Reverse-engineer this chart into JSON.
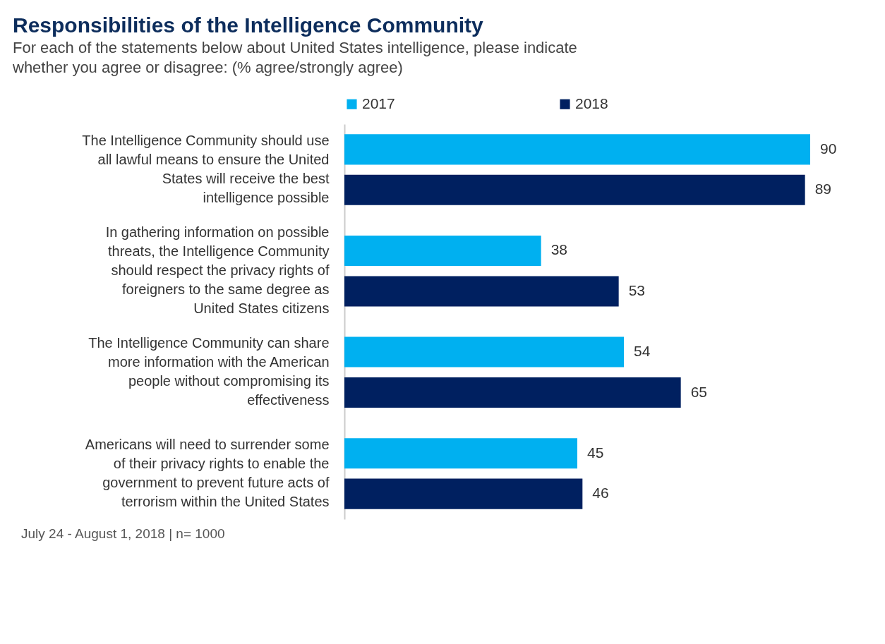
{
  "chart_data": {
    "type": "bar",
    "orientation": "horizontal",
    "title": "Responsibilities of the Intelligence Community",
    "subtitle": "For each of the statements below about United States intelligence, please indicate whether you agree or disagree: (% agree/strongly agree)",
    "categories": [
      "The Intelligence Community should use all lawful means to ensure the United States will receive the best intelligence possible",
      "In gathering information on possible threats, the Intelligence Community should respect the privacy rights of foreigners to the same degree as United States citizens",
      "The Intelligence Community can share more information with the American people without compromising its effectiveness",
      "Americans will need to surrender some of their privacy rights to enable the government to prevent future acts of terrorism within the United States"
    ],
    "series": [
      {
        "name": "2017",
        "color": "#00b0f0",
        "values": [
          90,
          38,
          54,
          45
        ]
      },
      {
        "name": "2018",
        "color": "#002060",
        "values": [
          89,
          53,
          65,
          46
        ]
      }
    ],
    "data_labels": true,
    "legend": "top",
    "grid": false,
    "annotations": [
      "July 24 - August 1, 2018 | n= 1000"
    ]
  }
}
